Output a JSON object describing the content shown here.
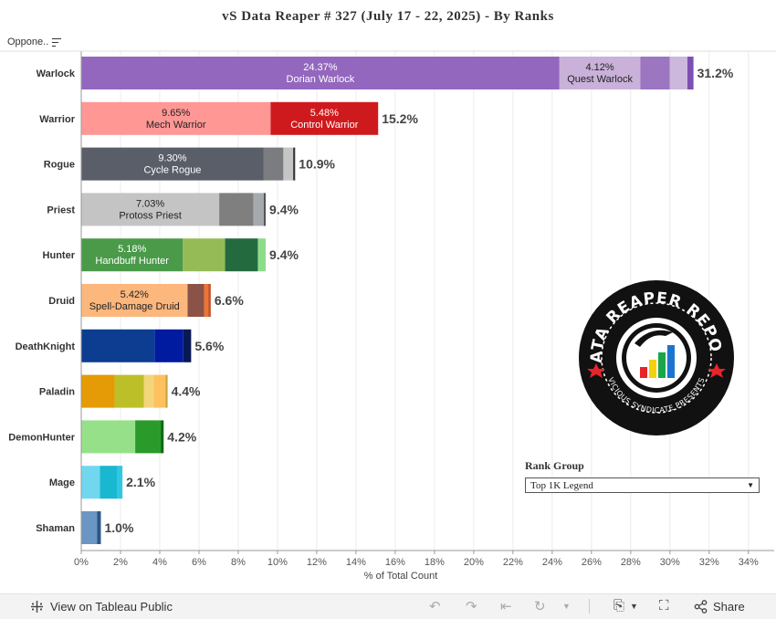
{
  "title": "vS  Data  Reaper  #   327  (July  17  -  22,  2025)  -  By  Ranks",
  "sort_header": {
    "label": "Oppone.."
  },
  "rank_group": {
    "title": "Rank  Group",
    "selected": "Top  1K  Legend"
  },
  "logo": {
    "text_top": "DATA REAPER REPORT",
    "text_bottom": "VICIOUS SYNDICATE PRESENTS"
  },
  "footer": {
    "view_label": "View on Tableau Public",
    "share_label": "Share"
  },
  "chart_data": {
    "type": "bar",
    "orientation": "horizontal",
    "stacked": true,
    "xlabel": "% of Total Count",
    "ylabel": "",
    "xlim": [
      0,
      34.8
    ],
    "ticks": [
      "0%",
      "2%",
      "4%",
      "6%",
      "8%",
      "10%",
      "12%",
      "14%",
      "16%",
      "18%",
      "20%",
      "22%",
      "24%",
      "26%",
      "28%",
      "30%",
      "32%",
      "34%"
    ],
    "tick_values": [
      0,
      2,
      4,
      6,
      8,
      10,
      12,
      14,
      16,
      18,
      20,
      22,
      24,
      26,
      28,
      30,
      32,
      34
    ],
    "categories": [
      {
        "name": "Warlock",
        "total_label": "31.2%",
        "segments": [
          {
            "value": 24.37,
            "color": "#9367be",
            "label_pct": "24.37%",
            "label_name": "Dorian Warlock",
            "text_color": "#ffffff"
          },
          {
            "value": 4.12,
            "color": "#c9b1d9",
            "label_pct": "4.12%",
            "label_name": "Quest Warlock",
            "text_color": "#222222"
          },
          {
            "value": 1.5,
            "color": "#9c76c0"
          },
          {
            "value": 0.9,
            "color": "#cbb8dc"
          },
          {
            "value": 0.31,
            "color": "#7e4fb3"
          }
        ]
      },
      {
        "name": "Warrior",
        "total_label": "15.2%",
        "segments": [
          {
            "value": 9.65,
            "color": "#ff9795",
            "label_pct": "9.65%",
            "label_name": "Mech Warrior",
            "text_color": "#222222"
          },
          {
            "value": 5.48,
            "color": "#cf1a1d",
            "label_pct": "5.48%",
            "label_name": "Control Warrior",
            "text_color": "#ffffff"
          }
        ]
      },
      {
        "name": "Rogue",
        "total_label": "10.9%",
        "segments": [
          {
            "value": 9.3,
            "color": "#5a5e69",
            "label_pct": "9.30%",
            "label_name": "Cycle Rogue",
            "text_color": "#ffffff"
          },
          {
            "value": 1.0,
            "color": "#7a7c80"
          },
          {
            "value": 0.5,
            "color": "#c5c5c5"
          },
          {
            "value": 0.1,
            "color": "#333333"
          }
        ]
      },
      {
        "name": "Priest",
        "total_label": "9.4%",
        "segments": [
          {
            "value": 7.03,
            "color": "#c4c4c4",
            "label_pct": "7.03%",
            "label_name": "Protoss Priest",
            "text_color": "#222222"
          },
          {
            "value": 1.75,
            "color": "#7f7f7f"
          },
          {
            "value": 0.52,
            "color": "#a5aaae"
          },
          {
            "value": 0.1,
            "color": "#555555"
          }
        ]
      },
      {
        "name": "Hunter",
        "total_label": "9.4%",
        "segments": [
          {
            "value": 5.18,
            "color": "#4a9a4a",
            "label_pct": "5.18%",
            "label_name": "Handbuff Hunter",
            "text_color": "#ffffff"
          },
          {
            "value": 2.15,
            "color": "#95bb56"
          },
          {
            "value": 1.67,
            "color": "#236b3e"
          },
          {
            "value": 0.4,
            "color": "#8ddc8a"
          }
        ]
      },
      {
        "name": "Druid",
        "total_label": "6.6%",
        "segments": [
          {
            "value": 5.42,
            "color": "#fcb77d",
            "label_pct": "5.42%",
            "label_name": "Spell-Damage Druid",
            "text_color": "#222222"
          },
          {
            "value": 0.85,
            "color": "#8b5347"
          },
          {
            "value": 0.2,
            "color": "#ef7430"
          },
          {
            "value": 0.13,
            "color": "#c4552a"
          }
        ]
      },
      {
        "name": "DeathKnight",
        "total_label": "5.6%",
        "segments": [
          {
            "value": 3.75,
            "color": "#0c3d91"
          },
          {
            "value": 1.45,
            "color": "#001aa0"
          },
          {
            "value": 0.4,
            "color": "#071a55"
          }
        ]
      },
      {
        "name": "Paladin",
        "total_label": "4.4%",
        "segments": [
          {
            "value": 1.7,
            "color": "#e49b05"
          },
          {
            "value": 1.5,
            "color": "#bdbf28"
          },
          {
            "value": 0.5,
            "color": "#f4d57a"
          },
          {
            "value": 0.6,
            "color": "#fdc15f"
          },
          {
            "value": 0.1,
            "color": "#c5a240"
          }
        ]
      },
      {
        "name": "DemonHunter",
        "total_label": "4.2%",
        "segments": [
          {
            "value": 2.75,
            "color": "#96e08a"
          },
          {
            "value": 1.3,
            "color": "#2a9b2b"
          },
          {
            "value": 0.15,
            "color": "#126a12"
          }
        ]
      },
      {
        "name": "Mage",
        "total_label": "2.1%",
        "segments": [
          {
            "value": 0.95,
            "color": "#71d7ef"
          },
          {
            "value": 0.9,
            "color": "#1ab7d0"
          },
          {
            "value": 0.25,
            "color": "#33c6e2"
          }
        ]
      },
      {
        "name": "Shaman",
        "total_label": "1.0%",
        "segments": [
          {
            "value": 0.8,
            "color": "#6b96c3"
          },
          {
            "value": 0.2,
            "color": "#2c5886"
          }
        ]
      }
    ]
  }
}
